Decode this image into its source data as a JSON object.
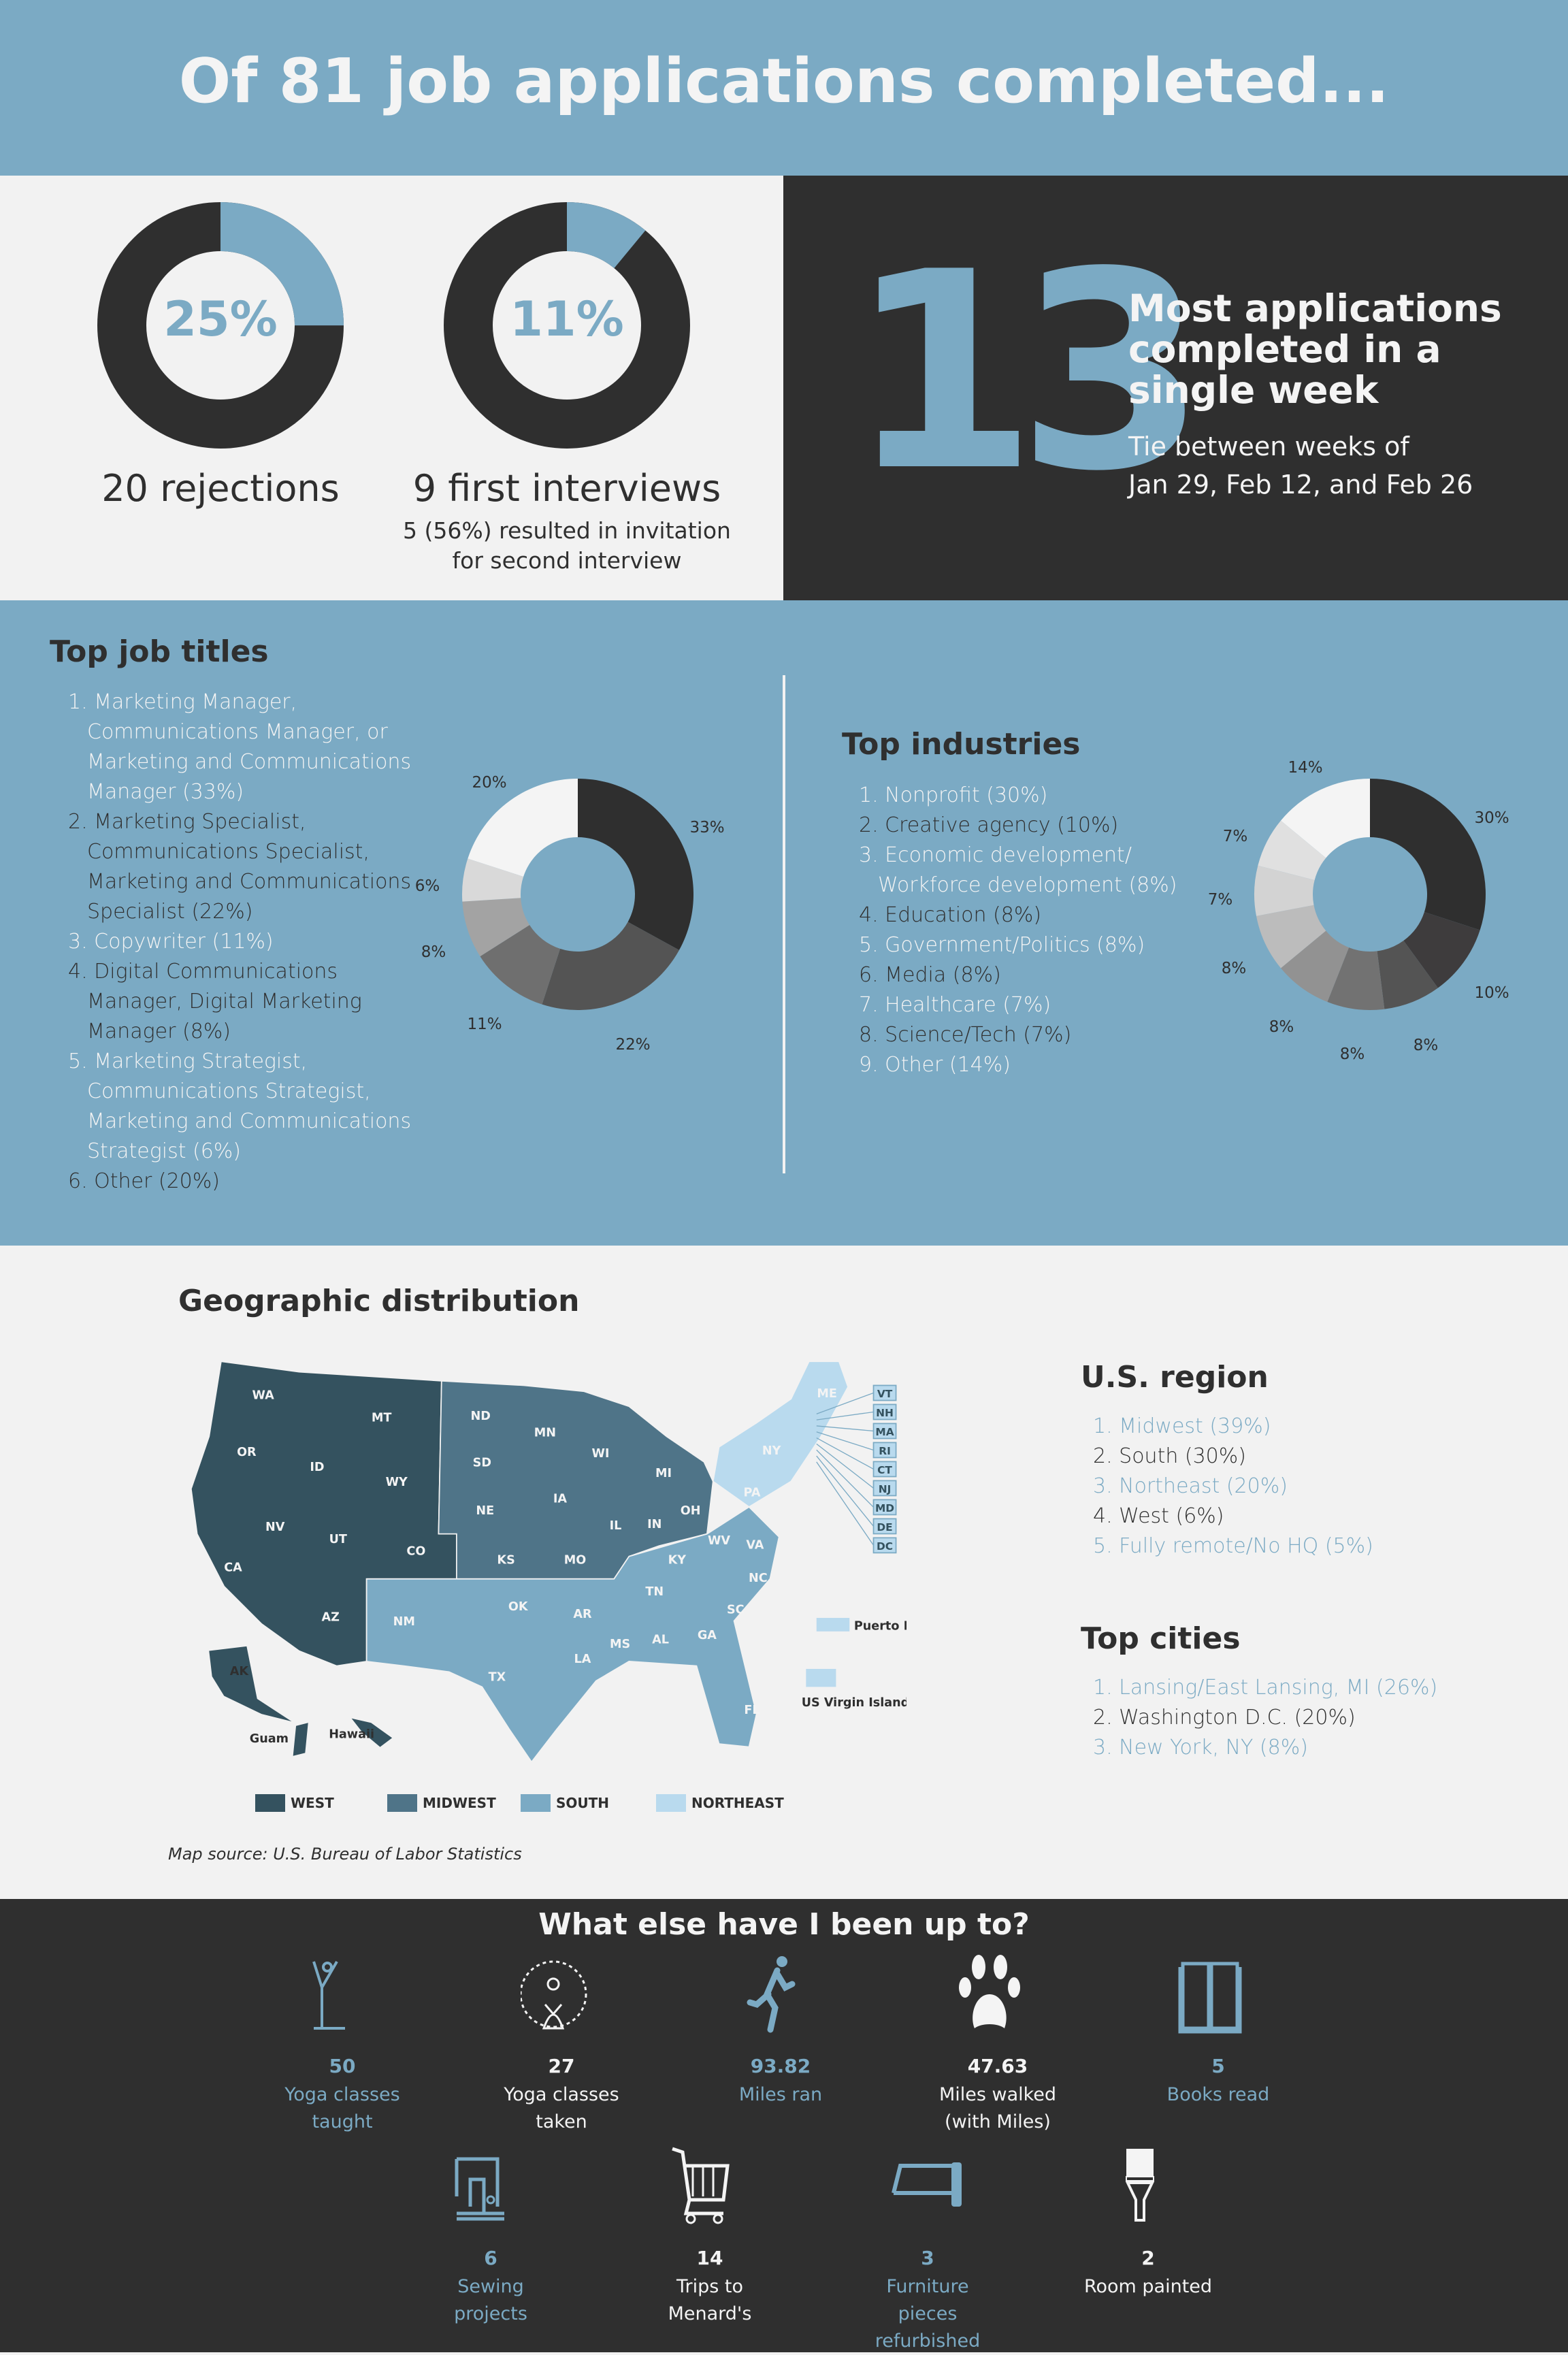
{
  "header": {
    "title": "Of 81 job applications completed..."
  },
  "summary": {
    "rejections": {
      "percent": "25%",
      "value": 25,
      "label": "20 rejections"
    },
    "interviews": {
      "percent": "11%",
      "value": 11,
      "label": "9 first interviews",
      "note_line1": "5 (56%) resulted in invitation",
      "note_line2": "for second interview"
    },
    "week": {
      "number": "13",
      "title_line1": "Most applications",
      "title_line2": "completed in a",
      "title_line3": "single week",
      "sub_line1": "Tie between weeks of",
      "sub_line2": "Jan 29, Feb 12, and Feb 26"
    }
  },
  "job_titles": {
    "heading": "Top job titles",
    "lines": [
      "1. Marketing Manager,",
      "Communications Manager, or",
      "Marketing and Communications",
      "Manager (33%)",
      "2. Marketing Specialist,",
      "Communications Specialist,",
      "Marketing and Communications",
      "Specialist (22%)",
      "3. Copywriter (11%)",
      "4. Digital Communications",
      "Manager, Digital Marketing",
      "Manager (8%)",
      "5. Marketing Strategist,",
      "Communications Strategist,",
      "Marketing and Communications",
      "Strategist (6%)",
      "6. Other (20%)"
    ]
  },
  "industries": {
    "heading": "Top industries",
    "lines": [
      "1. Nonprofit (30%)",
      "2. Creative agency (10%)",
      "3. Economic development/",
      "Workforce development (8%)",
      "4. Education (8%)",
      "5. Government/Politics (8%)",
      "6. Media (8%)",
      "7. Healthcare (7%)",
      "8. Science/Tech (7%)",
      "9. Other (14%)"
    ]
  },
  "chart_data": [
    {
      "type": "pie",
      "donut": true,
      "values": [
        33,
        22,
        11,
        8,
        6,
        20
      ],
      "labels": [
        "33%",
        "22%",
        "11%",
        "8%",
        "6%",
        "20%"
      ],
      "colors": [
        "#2f2f2f",
        "#545454",
        "#6f6f6f",
        "#a3a3a3",
        "#d9d9d9",
        "#f4f4f4"
      ]
    },
    {
      "type": "pie",
      "donut": true,
      "values": [
        30,
        10,
        8,
        8,
        8,
        8,
        7,
        7,
        14
      ],
      "labels": [
        "30%",
        "10%",
        "8%",
        "8%",
        "8%",
        "8%",
        "7%",
        "7%",
        "14%"
      ],
      "colors": [
        "#2f2f2f",
        "#3e3c3d",
        "#545454",
        "#727272",
        "#929292",
        "#bcbcbc",
        "#d3d3d3",
        "#e0e0e0",
        "#f4f4f4"
      ]
    }
  ],
  "geo": {
    "heading": "Geographic distribution",
    "source": "Map source: U.S. Bureau of Labor Statistics",
    "states": [
      "WA",
      "OR",
      "ID",
      "MT",
      "WY",
      "NV",
      "UT",
      "CO",
      "CA",
      "AZ",
      "NM",
      "ND",
      "SD",
      "NE",
      "KS",
      "MN",
      "IA",
      "MO",
      "WI",
      "IL",
      "MI",
      "IN",
      "OH",
      "KY",
      "TN",
      "OK",
      "TX",
      "AR",
      "LA",
      "MS",
      "AL",
      "GA",
      "FL",
      "SC",
      "NC",
      "VA",
      "WV",
      "PA",
      "NY",
      "ME",
      "AK",
      "Guam",
      "Hawaii"
    ],
    "ne_boxes": [
      "VT",
      "NH",
      "MA",
      "RI",
      "CT",
      "NJ",
      "MD",
      "DE",
      "DC"
    ],
    "territories": [
      "Puerto Rico",
      "US Virgin Islands"
    ],
    "legend": [
      {
        "label": "WEST",
        "color": "#34525f"
      },
      {
        "label": "MIDWEST",
        "color": "#4f7488"
      },
      {
        "label": "SOUTH",
        "color": "#7BAAC4"
      },
      {
        "label": "NORTHEAST",
        "color": "#b9daee"
      }
    ]
  },
  "region": {
    "heading": "U.S. region",
    "lines": [
      "1. Midwest (39%)",
      "2. South (30%)",
      "3. Northeast (20%)",
      "4. West (6%)",
      "5. Fully remote/No HQ (5%)"
    ]
  },
  "cities": {
    "heading": "Top cities",
    "lines": [
      "1. Lansing/East Lansing, MI (26%)",
      "2. Washington D.C. (20%)",
      "3. New York, NY (8%)"
    ]
  },
  "activities": {
    "heading": "What else have I been up to?",
    "items": [
      {
        "icon": "yoga-pose-icon",
        "num": "50",
        "l1": "Yoga classes",
        "l2": "taught",
        "l3": "",
        "color": "blue"
      },
      {
        "icon": "meditation-icon",
        "num": "27",
        "l1": "Yoga classes",
        "l2": "taken",
        "l3": "",
        "color": "white"
      },
      {
        "icon": "runner-icon",
        "num": "93.82",
        "l1": "Miles ran",
        "l2": "",
        "l3": "",
        "color": "blue"
      },
      {
        "icon": "paw-print-icon",
        "num": "47.63",
        "l1": "Miles walked",
        "l2": "(with Miles)",
        "l3": "",
        "color": "white"
      },
      {
        "icon": "open-book-icon",
        "num": "5",
        "l1": "Books read",
        "l2": "",
        "l3": "",
        "color": "blue"
      },
      {
        "icon": "sewing-machine-icon",
        "num": "6",
        "l1": "Sewing",
        "l2": "projects",
        "l3": "",
        "color": "blue"
      },
      {
        "icon": "shopping-cart-icon",
        "num": "14",
        "l1": "Trips to",
        "l2": "Menard's",
        "l3": "",
        "color": "white"
      },
      {
        "icon": "hacksaw-icon",
        "num": "3",
        "l1": "Furniture",
        "l2": "pieces",
        "l3": "refurbished",
        "color": "blue"
      },
      {
        "icon": "paintbrush-icon",
        "num": "2",
        "l1": "Room painted",
        "l2": "",
        "l3": "",
        "color": "white"
      }
    ]
  },
  "colors": {
    "blue": "#7BAAC4",
    "dark": "#2f2f2f",
    "light": "#f2f2f2"
  }
}
